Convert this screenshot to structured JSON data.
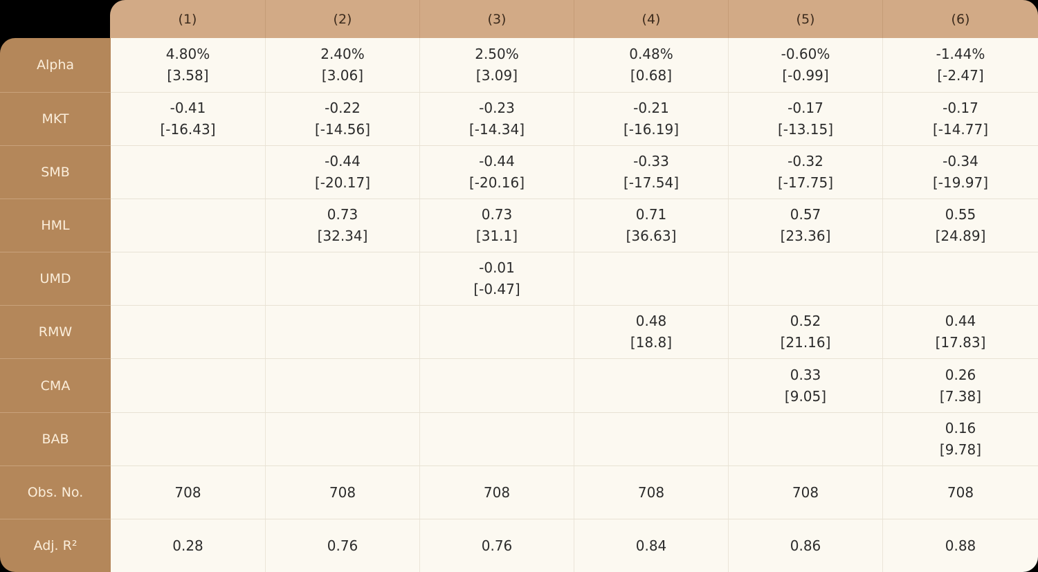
{
  "colors": {
    "header_bg": "#d2aa86",
    "stub_bg": "#b4875a",
    "body_bg": "#fcf9f1",
    "stub_text": "#fbeedb",
    "cell_text": "#2b2b2b"
  },
  "table": {
    "columns": [
      "(1)",
      "(2)",
      "(3)",
      "(4)",
      "(5)",
      "(6)"
    ],
    "rows": [
      {
        "label": "Alpha",
        "cells": [
          {
            "coef": "4.80%",
            "tstat": "[3.58]"
          },
          {
            "coef": "2.40%",
            "tstat": "[3.06]"
          },
          {
            "coef": "2.50%",
            "tstat": "[3.09]"
          },
          {
            "coef": "0.48%",
            "tstat": "[0.68]"
          },
          {
            "coef": "-0.60%",
            "tstat": "[-0.99]"
          },
          {
            "coef": "-1.44%",
            "tstat": "[-2.47]"
          }
        ]
      },
      {
        "label": "MKT",
        "cells": [
          {
            "coef": "-0.41",
            "tstat": "[-16.43]"
          },
          {
            "coef": "-0.22",
            "tstat": "[-14.56]"
          },
          {
            "coef": "-0.23",
            "tstat": "[-14.34]"
          },
          {
            "coef": "-0.21",
            "tstat": "[-16.19]"
          },
          {
            "coef": "-0.17",
            "tstat": "[-13.15]"
          },
          {
            "coef": "-0.17",
            "tstat": "[-14.77]"
          }
        ]
      },
      {
        "label": "SMB",
        "cells": [
          {
            "coef": "",
            "tstat": ""
          },
          {
            "coef": "-0.44",
            "tstat": "[-20.17]"
          },
          {
            "coef": "-0.44",
            "tstat": "[-20.16]"
          },
          {
            "coef": "-0.33",
            "tstat": "[-17.54]"
          },
          {
            "coef": "-0.32",
            "tstat": "[-17.75]"
          },
          {
            "coef": "-0.34",
            "tstat": "[-19.97]"
          }
        ]
      },
      {
        "label": "HML",
        "cells": [
          {
            "coef": "",
            "tstat": ""
          },
          {
            "coef": "0.73",
            "tstat": "[32.34]"
          },
          {
            "coef": "0.73",
            "tstat": "[31.1]"
          },
          {
            "coef": "0.71",
            "tstat": "[36.63]"
          },
          {
            "coef": "0.57",
            "tstat": "[23.36]"
          },
          {
            "coef": "0.55",
            "tstat": "[24.89]"
          }
        ]
      },
      {
        "label": "UMD",
        "cells": [
          {
            "coef": "",
            "tstat": ""
          },
          {
            "coef": "",
            "tstat": ""
          },
          {
            "coef": "-0.01",
            "tstat": "[-0.47]"
          },
          {
            "coef": "",
            "tstat": ""
          },
          {
            "coef": "",
            "tstat": ""
          },
          {
            "coef": "",
            "tstat": ""
          }
        ]
      },
      {
        "label": "RMW",
        "cells": [
          {
            "coef": "",
            "tstat": ""
          },
          {
            "coef": "",
            "tstat": ""
          },
          {
            "coef": "",
            "tstat": ""
          },
          {
            "coef": "0.48",
            "tstat": "[18.8]"
          },
          {
            "coef": "0.52",
            "tstat": "[21.16]"
          },
          {
            "coef": "0.44",
            "tstat": "[17.83]"
          }
        ]
      },
      {
        "label": "CMA",
        "cells": [
          {
            "coef": "",
            "tstat": ""
          },
          {
            "coef": "",
            "tstat": ""
          },
          {
            "coef": "",
            "tstat": ""
          },
          {
            "coef": "",
            "tstat": ""
          },
          {
            "coef": "0.33",
            "tstat": "[9.05]"
          },
          {
            "coef": "0.26",
            "tstat": "[7.38]"
          }
        ]
      },
      {
        "label": "BAB",
        "cells": [
          {
            "coef": "",
            "tstat": ""
          },
          {
            "coef": "",
            "tstat": ""
          },
          {
            "coef": "",
            "tstat": ""
          },
          {
            "coef": "",
            "tstat": ""
          },
          {
            "coef": "",
            "tstat": ""
          },
          {
            "coef": "0.16",
            "tstat": "[9.78]"
          }
        ]
      },
      {
        "label": "Obs. No.",
        "cells": [
          {
            "coef": "708",
            "tstat": ""
          },
          {
            "coef": "708",
            "tstat": ""
          },
          {
            "coef": "708",
            "tstat": ""
          },
          {
            "coef": "708",
            "tstat": ""
          },
          {
            "coef": "708",
            "tstat": ""
          },
          {
            "coef": "708",
            "tstat": ""
          }
        ]
      },
      {
        "label": "Adj. R²",
        "cells": [
          {
            "coef": "0.28",
            "tstat": ""
          },
          {
            "coef": "0.76",
            "tstat": ""
          },
          {
            "coef": "0.76",
            "tstat": ""
          },
          {
            "coef": "0.84",
            "tstat": ""
          },
          {
            "coef": "0.86",
            "tstat": ""
          },
          {
            "coef": "0.88",
            "tstat": ""
          }
        ]
      }
    ]
  }
}
